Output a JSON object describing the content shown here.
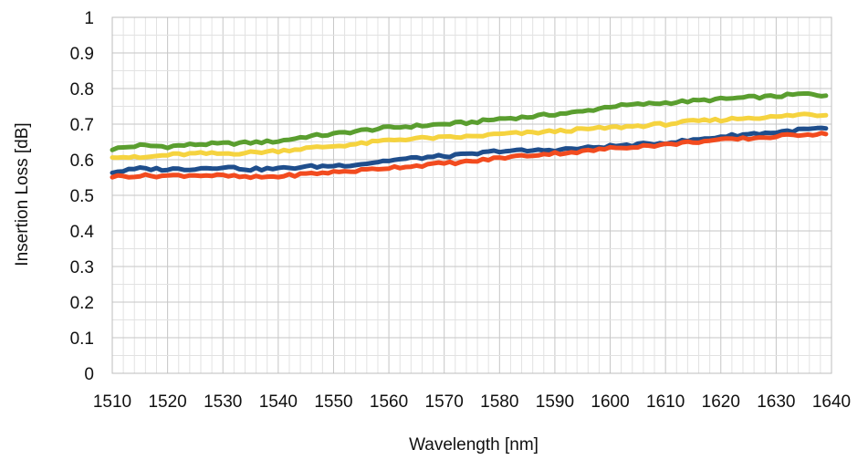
{
  "chart_data": {
    "type": "line",
    "xlabel": "Wavelength [nm]",
    "ylabel": "Insertion Loss [dB]",
    "xlim": [
      1510,
      1640
    ],
    "ylim": [
      0,
      1
    ],
    "x_ticks": [
      "1510",
      "1520",
      "1530",
      "1540",
      "1550",
      "1560",
      "1570",
      "1580",
      "1590",
      "1600",
      "1610",
      "1620",
      "1630",
      "1640"
    ],
    "y_ticks": [
      "0",
      "0.1",
      "0.2",
      "0.3",
      "0.4",
      "0.5",
      "0.6",
      "0.7",
      "0.8",
      "0.9",
      "1"
    ],
    "grid": true,
    "legend": "none",
    "x": [
      1510,
      1515,
      1520,
      1525,
      1530,
      1535,
      1540,
      1545,
      1550,
      1555,
      1560,
      1565,
      1570,
      1575,
      1580,
      1585,
      1590,
      1595,
      1600,
      1605,
      1610,
      1615,
      1620,
      1625,
      1630,
      1635,
      1639
    ],
    "series": [
      {
        "color": "#5a9e2f",
        "values": [
          0.63,
          0.64,
          0.637,
          0.643,
          0.645,
          0.648,
          0.652,
          0.665,
          0.672,
          0.682,
          0.69,
          0.695,
          0.7,
          0.705,
          0.715,
          0.72,
          0.728,
          0.735,
          0.75,
          0.755,
          0.76,
          0.765,
          0.77,
          0.775,
          0.778,
          0.785,
          0.78
        ]
      },
      {
        "color": "#f5d33f",
        "values": [
          0.61,
          0.605,
          0.613,
          0.617,
          0.617,
          0.62,
          0.625,
          0.632,
          0.638,
          0.645,
          0.655,
          0.66,
          0.662,
          0.665,
          0.672,
          0.675,
          0.68,
          0.685,
          0.69,
          0.695,
          0.7,
          0.708,
          0.712,
          0.718,
          0.72,
          0.728,
          0.725
        ]
      },
      {
        "color": "#1f4e8c",
        "values": [
          0.565,
          0.575,
          0.573,
          0.575,
          0.58,
          0.573,
          0.575,
          0.58,
          0.583,
          0.588,
          0.598,
          0.605,
          0.61,
          0.615,
          0.625,
          0.625,
          0.628,
          0.632,
          0.638,
          0.642,
          0.648,
          0.655,
          0.665,
          0.672,
          0.677,
          0.685,
          0.688
        ]
      },
      {
        "color": "#f24b1f",
        "values": [
          0.553,
          0.555,
          0.555,
          0.557,
          0.555,
          0.55,
          0.553,
          0.56,
          0.565,
          0.57,
          0.578,
          0.583,
          0.59,
          0.595,
          0.605,
          0.612,
          0.618,
          0.623,
          0.632,
          0.638,
          0.642,
          0.65,
          0.655,
          0.66,
          0.665,
          0.672,
          0.672
        ]
      }
    ]
  }
}
